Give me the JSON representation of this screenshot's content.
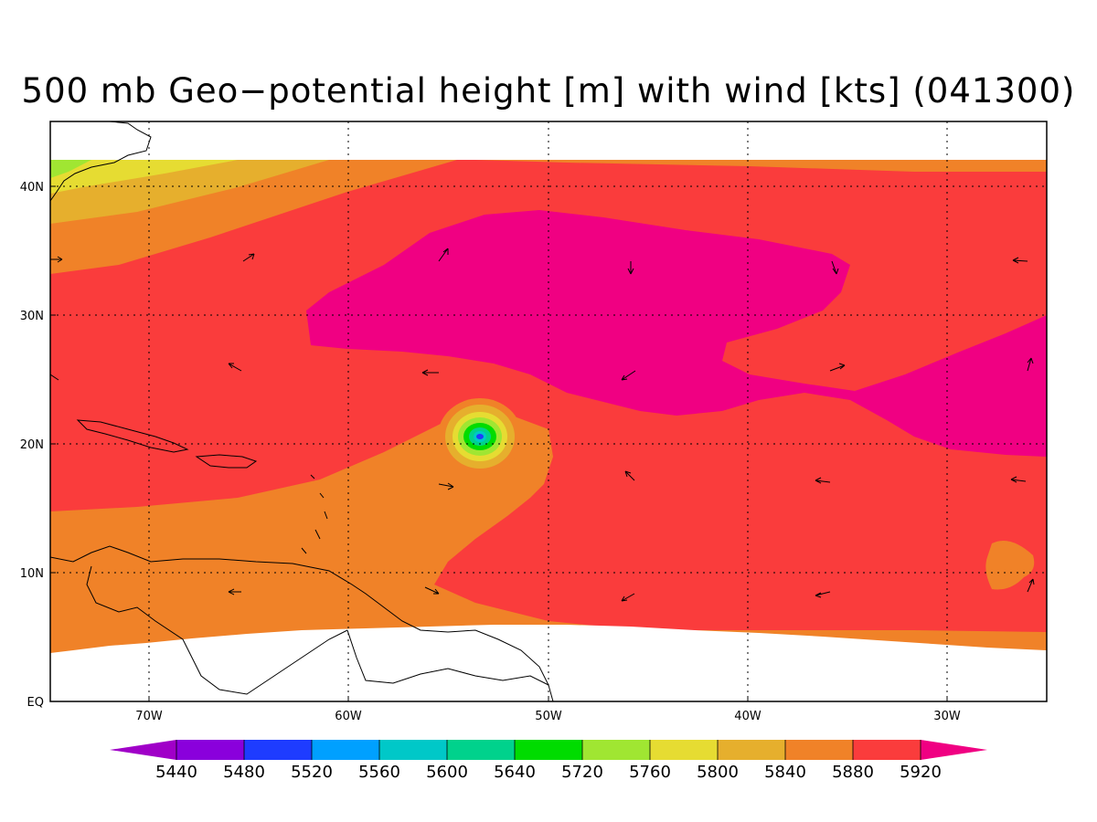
{
  "title": "500 mb Geo−potential height [m] with wind [kts] (041300)",
  "map": {
    "lat_labels": [
      "40N",
      "30N",
      "20N",
      "10N",
      "EQ"
    ],
    "lon_labels": [
      "70W",
      "60W",
      "50W",
      "40W",
      "30W"
    ],
    "cyclone_center": {
      "lon": "53.5W",
      "lat": "20.5N"
    }
  },
  "colorbar": {
    "levels": [
      "5440",
      "5480",
      "5520",
      "5560",
      "5600",
      "5640",
      "5720",
      "5760",
      "5800",
      "5840",
      "5880",
      "5920"
    ],
    "colors": [
      "#8a00dc",
      "#1e3cff",
      "#00a0ff",
      "#00c8c8",
      "#00d28c",
      "#00dc00",
      "#a0e632",
      "#e6dc32",
      "#e6af2d",
      "#f08228",
      "#fa3c3c",
      "#f00082"
    ],
    "low_end_color": "#a000c8",
    "high_end_color": "#f00082"
  }
}
